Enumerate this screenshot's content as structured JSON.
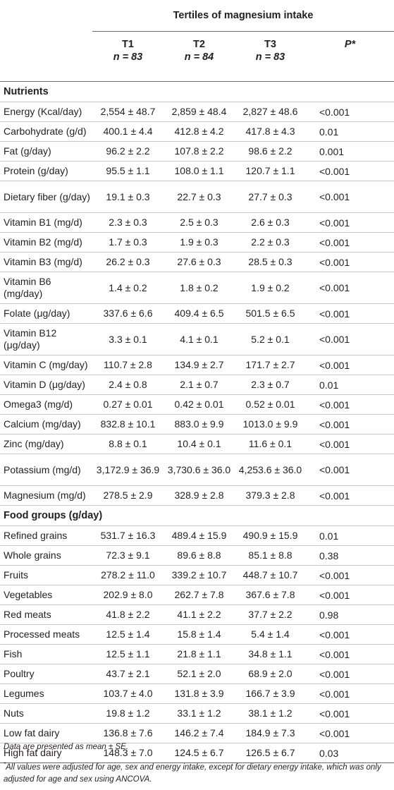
{
  "header": {
    "group_title": "Tertiles of magnesium intake",
    "columns": [
      {
        "name": "T1",
        "n": "n = 83"
      },
      {
        "name": "T2",
        "n": "n = 84"
      },
      {
        "name": "T3",
        "n": "n = 83"
      }
    ],
    "p_label": "P*"
  },
  "sections": [
    {
      "title": "Nutrients",
      "rows": [
        {
          "label": "Energy (Kcal/day)",
          "t1": "2,554 ± 48.7",
          "t2": "2,859 ± 48.4",
          "t3": "2,827 ± 48.6",
          "p": "<0.001"
        },
        {
          "label": "Carbohydrate (g/d)",
          "t1": "400.1 ± 4.4",
          "t2": "412.8 ± 4.2",
          "t3": "417.8 ± 4.3",
          "p": "0.01"
        },
        {
          "label": "Fat (g/day)",
          "t1": "96.2 ± 2.2",
          "t2": "107.8 ± 2.2",
          "t3": "98.6 ± 2.2",
          "p": "0.001"
        },
        {
          "label": "Protein (g/day)",
          "t1": "95.5 ± 1.1",
          "t2": "108.0 ± 1.1",
          "t3": "120.7 ± 1.1",
          "p": "<0.001"
        },
        {
          "label": "Dietary fiber (g/day)",
          "t1": "19.1 ± 0.3",
          "t2": "22.7 ± 0.3",
          "t3": "27.7 ± 0.3",
          "p": "<0.001"
        },
        {
          "label": "Vitamin B1 (mg/d)",
          "t1": "2.3 ± 0.3",
          "t2": "2.5 ± 0.3",
          "t3": "2.6 ± 0.3",
          "p": "<0.001"
        },
        {
          "label": "Vitamin B2 (mg/d)",
          "t1": "1.7 ± 0.3",
          "t2": "1.9 ± 0.3",
          "t3": "2.2 ± 0.3",
          "p": "<0.001"
        },
        {
          "label": "Vitamin B3 (mg/d)",
          "t1": "26.2 ± 0.3",
          "t2": "27.6 ± 0.3",
          "t3": "28.5 ± 0.3",
          "p": "<0.001"
        },
        {
          "label": "Vitamin B6 (mg/day)",
          "t1": "1.4 ± 0.2",
          "t2": "1.8 ± 0.2",
          "t3": "1.9 ± 0.2",
          "p": "<0.001"
        },
        {
          "label": "Folate (μg/day)",
          "t1": "337.6 ± 6.6",
          "t2": "409.4 ± 6.5",
          "t3": "501.5 ± 6.5",
          "p": "<0.001"
        },
        {
          "label": "Vitamin B12 (μg/day)",
          "t1": "3.3 ± 0.1",
          "t2": "4.1 ± 0.1",
          "t3": "5.2 ± 0.1",
          "p": "<0.001"
        },
        {
          "label": "Vitamin C (mg/day)",
          "t1": "110.7 ± 2.8",
          "t2": "134.9 ± 2.7",
          "t3": "171.7 ± 2.7",
          "p": "<0.001"
        },
        {
          "label": "Vitamin D (μg/day)",
          "t1": "2.4 ± 0.8",
          "t2": "2.1 ± 0.7",
          "t3": "2.3 ± 0.7",
          "p": "0.01"
        },
        {
          "label": "Omega3 (mg/d)",
          "t1": "0.27 ± 0.01",
          "t2": "0.42 ± 0.01",
          "t3": "0.52 ± 0.01",
          "p": "<0.001"
        },
        {
          "label": "Calcium (mg/day)",
          "t1": "832.8 ± 10.1",
          "t2": "883.0 ± 9.9",
          "t3": "1013.0 ± 9.9",
          "p": "<0.001"
        },
        {
          "label": "Zinc (mg/day)",
          "t1": "8.8 ± 0.1",
          "t2": "10.4 ± 0.1",
          "t3": "11.6 ± 0.1",
          "p": "<0.001"
        },
        {
          "label": "Potassium (mg/d)",
          "t1": "3,172.9 ± 36.9",
          "t2": "3,730.6 ± 36.0",
          "t3": "4,253.6 ± 36.0",
          "p": "<0.001"
        },
        {
          "label": "Magnesium (mg/d)",
          "t1": "278.5 ± 2.9",
          "t2": "328.9 ± 2.8",
          "t3": "379.3 ± 2.8",
          "p": "<0.001"
        }
      ]
    },
    {
      "title": "Food groups (g/day)",
      "rows": [
        {
          "label": "Refined grains",
          "t1": "531.7 ± 16.3",
          "t2": "489.4 ± 15.9",
          "t3": "490.9 ± 15.9",
          "p": "0.01"
        },
        {
          "label": "Whole grains",
          "t1": "72.3 ± 9.1",
          "t2": "89.6 ± 8.8",
          "t3": "85.1 ± 8.8",
          "p": "0.38"
        },
        {
          "label": "Fruits",
          "t1": "278.2 ± 11.0",
          "t2": "339.2 ± 10.7",
          "t3": "448.7 ± 10.7",
          "p": "<0.001"
        },
        {
          "label": "Vegetables",
          "t1": "202.9 ± 8.0",
          "t2": "262.7 ± 7.8",
          "t3": "367.6 ± 7.8",
          "p": "<0.001"
        },
        {
          "label": "Red meats",
          "t1": "41.8 ± 2.2",
          "t2": "41.1 ± 2.2",
          "t3": "37.7 ± 2.2",
          "p": "0.98"
        },
        {
          "label": "Processed meats",
          "t1": "12.5 ± 1.4",
          "t2": "15.8 ± 1.4",
          "t3": "5.4 ± 1.4",
          "p": "<0.001"
        },
        {
          "label": "Fish",
          "t1": "12.5 ± 1.1",
          "t2": "21.8 ± 1.1",
          "t3": "34.8 ± 1.1",
          "p": "<0.001"
        },
        {
          "label": "Poultry",
          "t1": "43.7 ± 2.1",
          "t2": "52.1 ± 2.0",
          "t3": "68.9 ± 2.0",
          "p": "<0.001"
        },
        {
          "label": "Legumes",
          "t1": "103.7 ± 4.0",
          "t2": "131.8 ± 3.9",
          "t3": "166.7 ± 3.9",
          "p": "<0.001"
        },
        {
          "label": "Nuts",
          "t1": "19.8 ± 1.2",
          "t2": "33.1 ± 1.2",
          "t3": "38.1 ± 1.2",
          "p": "<0.001"
        },
        {
          "label": "Low fat dairy",
          "t1": "136.8 ± 7.6",
          "t2": "146.2 ± 7.4",
          "t3": "184.9 ± 7.3",
          "p": "<0.001"
        },
        {
          "label": "High fat dairy",
          "t1": "148.3 ± 7.0",
          "t2": "124.5 ± 6.7",
          "t3": "126.5 ± 6.7",
          "p": "0.03"
        }
      ]
    }
  ],
  "footnotes": {
    "data_note": "Data are presented as mean ± SE.",
    "adjust_marker": "*",
    "adjust_note": "All values were adjusted for age, sex and energy intake, except for dietary energy intake, which was only adjusted for age and sex using ANCOVA."
  }
}
